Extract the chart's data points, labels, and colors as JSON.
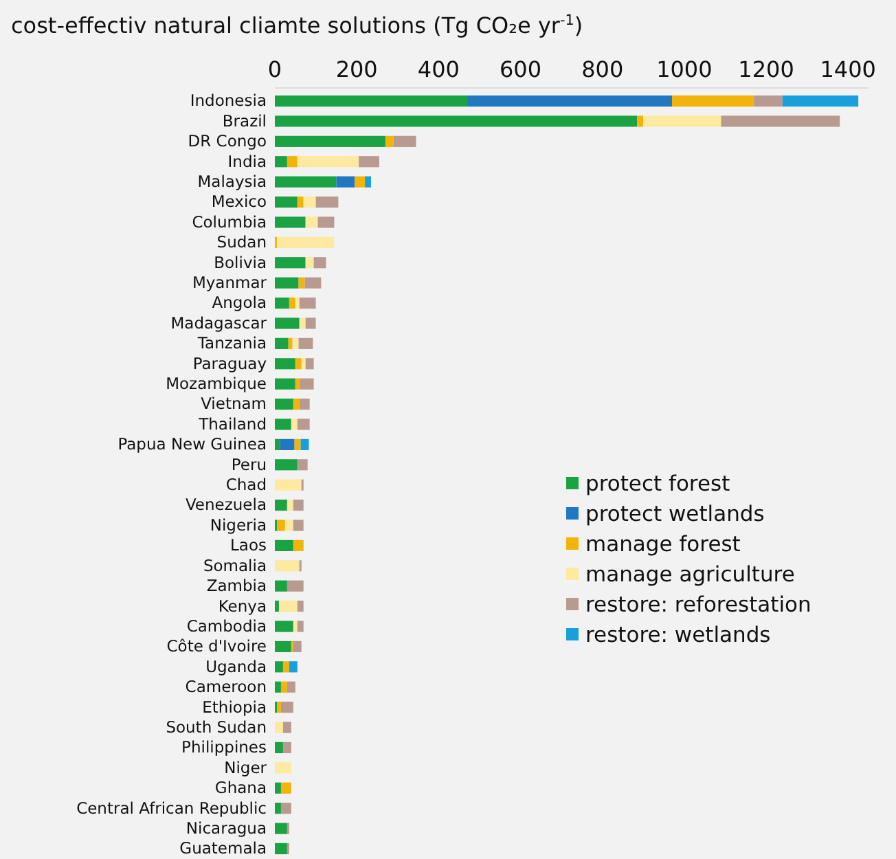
{
  "chart_data": {
    "type": "bar",
    "orientation": "horizontal",
    "stacked": true,
    "title": "cost-effectiv natural cliamte solutions (Tg CO₂e yr$^{-1}$)",
    "categories": [
      "Indonesia",
      "Brazil",
      "DR Congo",
      "India",
      "Malaysia",
      "Mexico",
      "Columbia",
      "Sudan",
      "Bolivia",
      "Myanmar",
      "Angola",
      "Madagascar",
      "Tanzania",
      "Paraguay",
      "Mozambique",
      "Vietnam",
      "Thailand",
      "Papua New Guinea",
      "Peru",
      "Chad",
      "Venezuela",
      "Nigeria",
      "Laos",
      "Somalia",
      "Zambia",
      "Kenya",
      "Cambodia",
      "Côte d'Ivoire",
      "Uganda",
      "Cameroon",
      "Ethiopia",
      "South Sudan",
      "Philippines",
      "Niger",
      "Ghana",
      "Central African Republic",
      "Nicaragua",
      "Guatemala"
    ],
    "series": [
      {
        "name": "protect forest",
        "color": "#1aa243",
        "values": [
          470,
          885,
          270,
          30,
          150,
          55,
          75,
          0,
          75,
          58,
          35,
          60,
          33,
          50,
          50,
          45,
          40,
          13,
          55,
          0,
          30,
          5,
          45,
          0,
          30,
          10,
          45,
          40,
          20,
          15,
          5,
          0,
          20,
          0,
          15,
          15,
          30,
          30
        ]
      },
      {
        "name": "protect wetlands",
        "color": "#1f78c0",
        "values": [
          500,
          0,
          0,
          0,
          45,
          0,
          0,
          0,
          0,
          0,
          0,
          0,
          0,
          0,
          0,
          0,
          0,
          35,
          0,
          0,
          0,
          0,
          0,
          0,
          0,
          0,
          0,
          0,
          0,
          0,
          0,
          0,
          0,
          0,
          0,
          0,
          0,
          0
        ]
      },
      {
        "name": "manage forest",
        "color": "#f2b40a",
        "values": [
          200,
          15,
          20,
          25,
          25,
          15,
          0,
          5,
          0,
          15,
          15,
          0,
          10,
          15,
          10,
          15,
          0,
          15,
          0,
          0,
          0,
          20,
          25,
          0,
          0,
          0,
          0,
          5,
          15,
          15,
          10,
          0,
          0,
          0,
          25,
          0,
          0,
          0
        ]
      },
      {
        "name": "manage agriculture",
        "color": "#fde9a0",
        "values": [
          0,
          190,
          0,
          150,
          0,
          30,
          30,
          140,
          20,
          0,
          10,
          15,
          15,
          10,
          0,
          0,
          15,
          0,
          0,
          65,
          15,
          20,
          0,
          60,
          0,
          45,
          10,
          0,
          0,
          0,
          0,
          20,
          0,
          40,
          0,
          0,
          0,
          0
        ]
      },
      {
        "name": "restore: reforestation",
        "color": "#b99a90",
        "values": [
          70,
          290,
          55,
          50,
          0,
          55,
          40,
          0,
          30,
          40,
          40,
          25,
          35,
          20,
          35,
          25,
          30,
          0,
          25,
          5,
          25,
          25,
          0,
          5,
          40,
          15,
          15,
          20,
          0,
          20,
          30,
          20,
          20,
          0,
          0,
          25,
          5,
          5
        ]
      },
      {
        "name": "restore: wetlands",
        "color": "#18a0dc",
        "values": [
          185,
          0,
          0,
          0,
          15,
          0,
          0,
          0,
          0,
          0,
          0,
          0,
          0,
          0,
          0,
          0,
          0,
          20,
          0,
          0,
          0,
          0,
          0,
          0,
          0,
          0,
          0,
          0,
          20,
          0,
          0,
          0,
          0,
          0,
          0,
          0,
          0,
          0
        ]
      }
    ],
    "xlim": [
      0,
      1450
    ],
    "xticks": [
      0,
      200,
      400,
      600,
      800,
      1000,
      1200,
      1400
    ],
    "grid": false,
    "legend": "right"
  }
}
